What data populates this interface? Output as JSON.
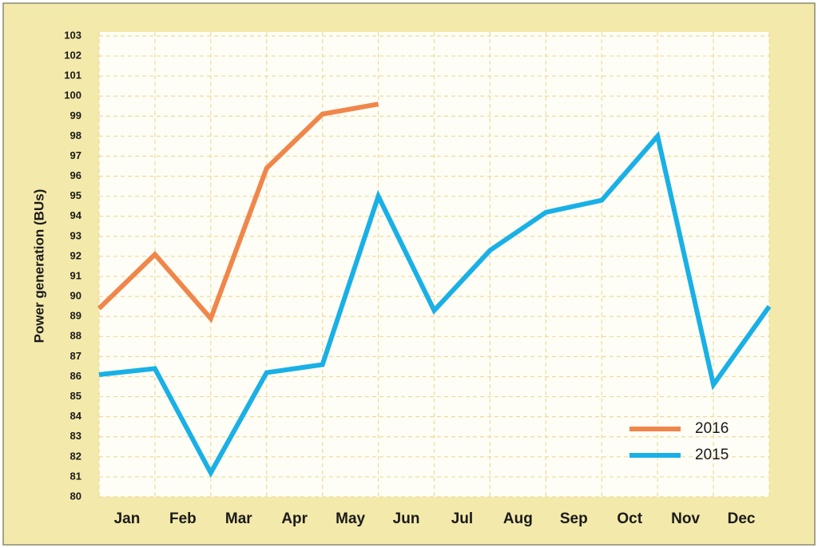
{
  "chart_data": {
    "type": "line",
    "y_label": "Power generation (BUs)",
    "x": [
      0,
      1,
      2,
      3,
      4,
      5,
      6,
      7,
      8,
      9,
      10,
      11,
      12
    ],
    "xlim": [
      0,
      12
    ],
    "xticks": [
      {
        "value": 0.5,
        "label": "Jan"
      },
      {
        "value": 1.5,
        "label": "Feb"
      },
      {
        "value": 2.5,
        "label": "Mar"
      },
      {
        "value": 3.5,
        "label": "Apr"
      },
      {
        "value": 4.5,
        "label": "May"
      },
      {
        "value": 5.5,
        "label": "Jun"
      },
      {
        "value": 6.5,
        "label": "Jul"
      },
      {
        "value": 7.5,
        "label": "Aug"
      },
      {
        "value": 8.5,
        "label": "Sep"
      },
      {
        "value": 9.5,
        "label": "Oct"
      },
      {
        "value": 10.5,
        "label": "Nov"
      },
      {
        "value": 11.5,
        "label": "Dec"
      }
    ],
    "ylim": [
      80,
      103
    ],
    "yticks": [
      80,
      81,
      82,
      83,
      84,
      85,
      86,
      87,
      88,
      89,
      90,
      91,
      92,
      93,
      94,
      95,
      96,
      97,
      98,
      99,
      100,
      101,
      102,
      103
    ],
    "grid": true,
    "legend_position": "lower right",
    "series": [
      {
        "name": "2016",
        "color": "#f0864a",
        "values": [
          89.4,
          92.1,
          88.9,
          96.4,
          99.1,
          99.6,
          null,
          null,
          null,
          null,
          null,
          null,
          null
        ]
      },
      {
        "name": "2015",
        "color": "#19b0e6",
        "values": [
          86.1,
          86.4,
          81.2,
          86.2,
          86.6,
          95.0,
          89.3,
          92.3,
          94.2,
          94.8,
          98.0,
          85.6,
          89.5
        ]
      }
    ]
  }
}
